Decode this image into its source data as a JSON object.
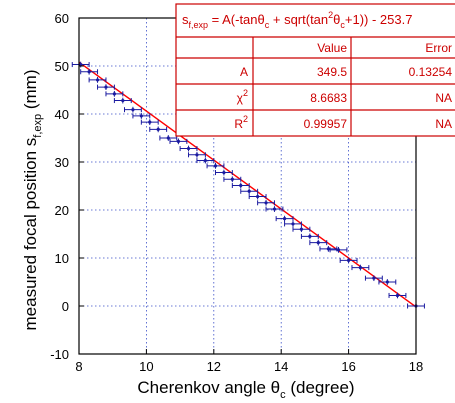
{
  "chart_data": {
    "type": "scatter",
    "title": "",
    "xlabel": {
      "main": "Cherenkov angle θ",
      "sub": "c",
      "suffix": " (degree)"
    },
    "ylabel": {
      "main": "measured focal position s",
      "sub": "f,exp",
      "suffix": " (mm)"
    },
    "xlim": [
      8,
      18
    ],
    "ylim": [
      -10,
      60
    ],
    "xticks": [
      "8",
      "10",
      "12",
      "14",
      "16",
      "18"
    ],
    "yticks": [
      "-10",
      "0",
      "10",
      "20",
      "30",
      "40",
      "50",
      "60"
    ],
    "grid": true,
    "grid_style": "dotted",
    "marker_color": "#1a1aa0",
    "fit_color": "#ff0000",
    "series": [
      {
        "x": [
          8.05,
          8.3,
          8.55,
          8.8,
          9.05,
          9.3,
          9.6,
          9.85,
          10.1,
          10.35,
          10.65,
          10.95,
          11.25,
          11.5,
          11.75,
          12.05,
          12.3,
          12.55,
          12.8,
          13.05,
          13.3,
          13.55,
          13.8,
          14.1,
          14.35,
          14.6,
          14.85,
          15.1,
          15.4,
          15.7,
          16.0,
          16.35,
          16.75,
          17.15,
          17.45,
          18.0
        ],
        "y": [
          50.3,
          48.8,
          47.1,
          45.6,
          44.2,
          42.8,
          40.9,
          39.6,
          38.3,
          36.8,
          35.0,
          34.3,
          32.8,
          31.5,
          30.3,
          29.2,
          27.8,
          26.4,
          25.1,
          23.9,
          22.8,
          21.5,
          20.2,
          18.2,
          17.1,
          16.0,
          14.5,
          13.2,
          11.9,
          11.7,
          9.5,
          8.0,
          5.8,
          5.0,
          2.2,
          0.0
        ],
        "xerr": 0.25,
        "yerr": 0.6
      }
    ],
    "fit_line": {
      "x": [
        8,
        18
      ],
      "y": [
        50.8,
        -0.2
      ]
    }
  },
  "fit_box": {
    "equation": {
      "p1": "s",
      "p1_sub": "f,exp",
      "p2": " = A(-tanθ",
      "p2_sub": "c",
      "p3": " + sqrt(tan",
      "p3_sup": "2",
      "p4": "θ",
      "p4_sub": "c",
      "p5": "+1)) - 253.7"
    },
    "header": [
      "",
      "Value",
      "Error"
    ],
    "rows": [
      {
        "name": "A",
        "name_sup": "",
        "value": "349.5",
        "error": "0.13254"
      },
      {
        "name": "χ",
        "name_sup": "2",
        "value": "8.6683",
        "error": "NA"
      },
      {
        "name": "R",
        "name_sup": "2",
        "value": "0.99957",
        "error": "NA"
      }
    ],
    "color": "#cc0000"
  }
}
